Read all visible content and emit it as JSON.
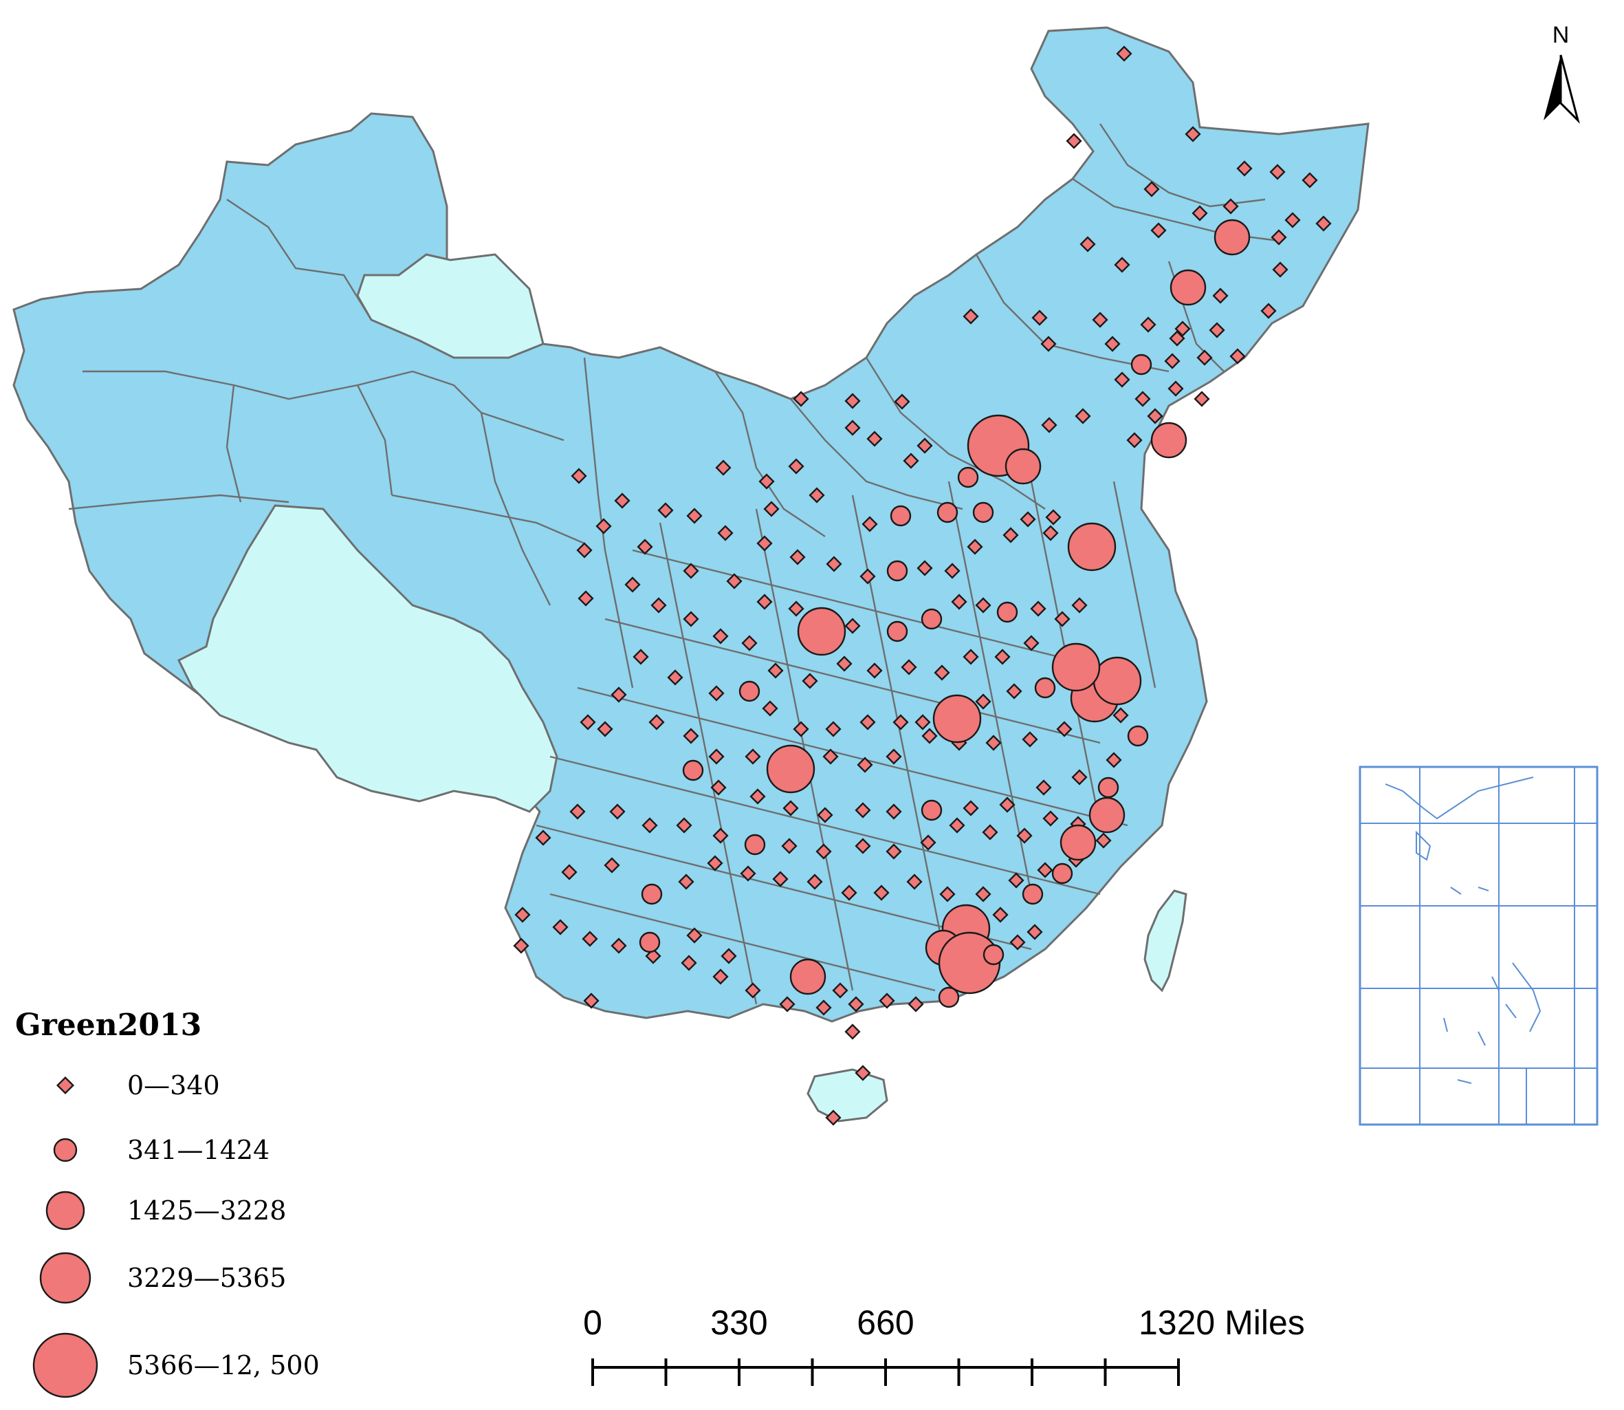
{
  "map": {
    "legend_title": "Green2013",
    "colors": {
      "region_fill": "#92d6ef",
      "light_fill": "#ccf9f7",
      "border": "#6e6e6e",
      "symbol_fill": "#f07878",
      "symbol_stroke": "#1a1a1a",
      "inset_lines": "#5b8fd6"
    },
    "legend_classes": [
      {
        "label": "0—340",
        "size_class": 1
      },
      {
        "label": "341—1424",
        "size_class": 2
      },
      {
        "label": "1425—3228",
        "size_class": 3
      },
      {
        "label": "3229—5365",
        "size_class": 4
      },
      {
        "label": "5366—12, 500",
        "size_class": 5
      }
    ],
    "scale_bar": {
      "labels": [
        "0",
        "330",
        "660",
        "1320 Miles"
      ]
    },
    "north_arrow": {
      "label": "N"
    },
    "inset": {
      "description_shown": false
    }
  }
}
